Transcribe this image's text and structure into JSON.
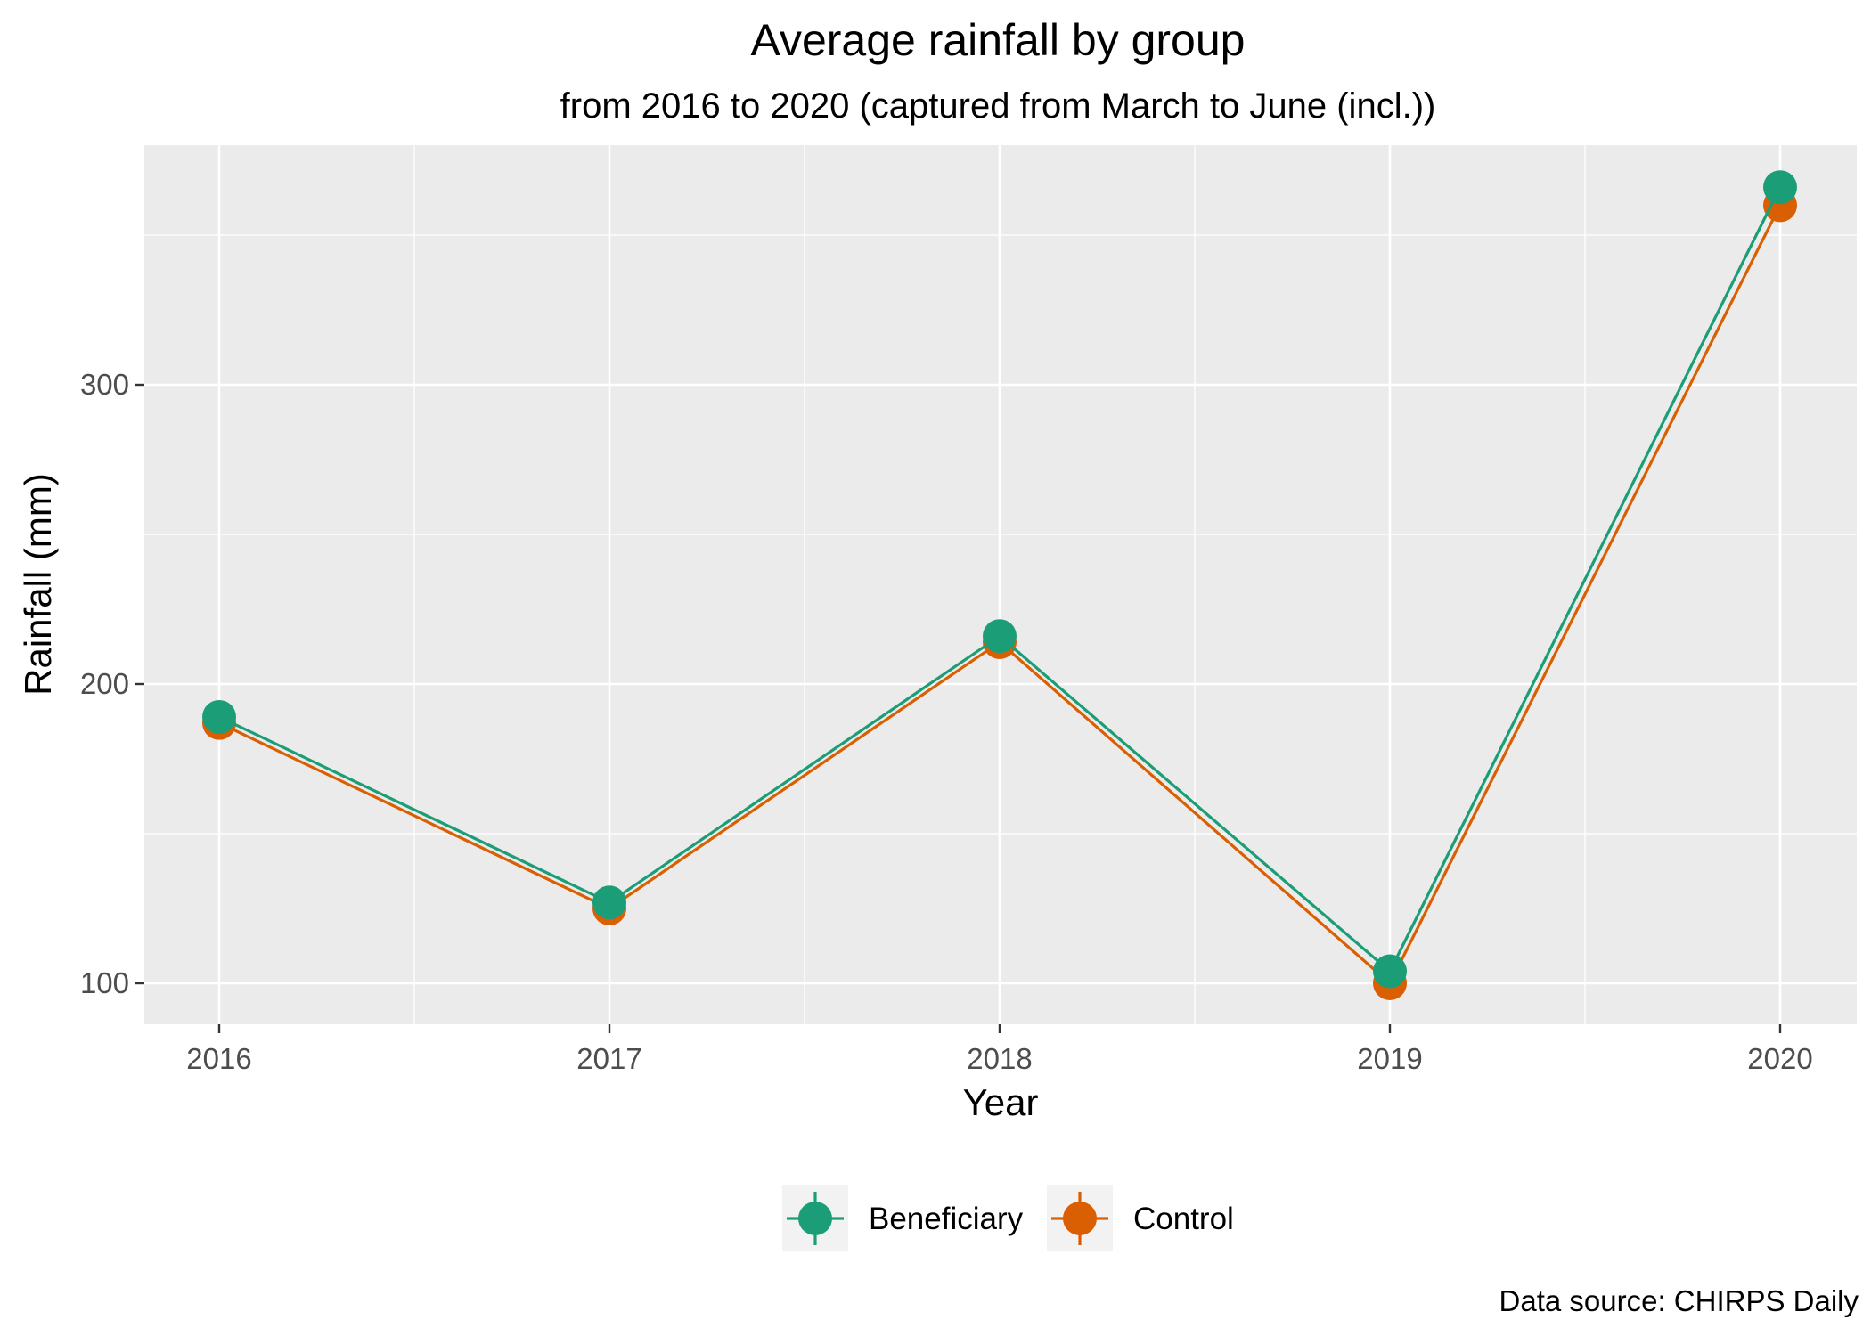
{
  "chart_data": {
    "type": "line",
    "title": "Average rainfall by group",
    "subtitle": "from 2016 to 2020 (captured from March to June (incl.))",
    "xlabel": "Year",
    "ylabel": "Rainfall (mm)",
    "caption": "Data source: CHIRPS Daily",
    "x": [
      "2016",
      "2017",
      "2018",
      "2019",
      "2020"
    ],
    "y_ticks": [
      100,
      200,
      300
    ],
    "ylim": [
      85,
      375
    ],
    "grid": true,
    "legend_position": "bottom",
    "series": [
      {
        "name": "Beneficiary",
        "color": "#1b9e77",
        "values": [
          189,
          127,
          216,
          104,
          366
        ]
      },
      {
        "name": "Control",
        "color": "#d95f02",
        "values": [
          187,
          125,
          214,
          100,
          360
        ]
      }
    ]
  }
}
